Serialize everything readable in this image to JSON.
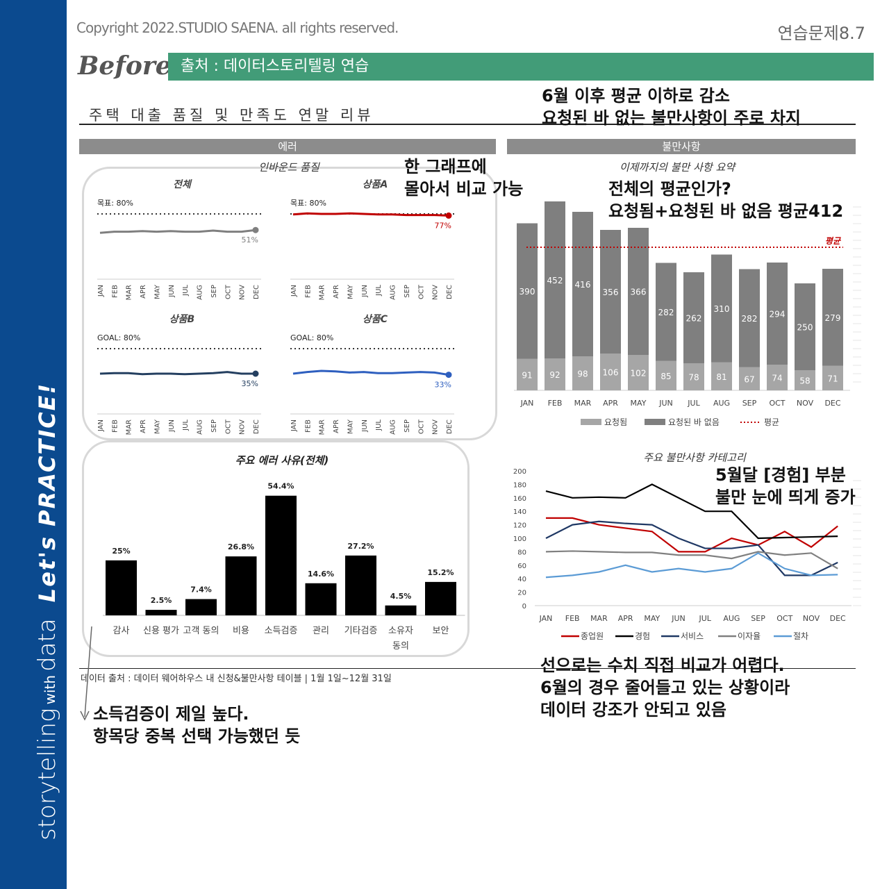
{
  "sidebar": {
    "text_a": "storytelling",
    "text_b": "with",
    "text_c": "data",
    "text_d": "Let's PRACTICE!"
  },
  "header": {
    "copyright": "Copyright 2022.STUDIO SAENA. all rights reserved.",
    "exercise": "연습문제8.7",
    "before": "Before",
    "source": "출처 : 데이터스토리텔링 연습"
  },
  "main_title": "주택 대출 품질 및 만족도 연말 리뷰",
  "sections": {
    "error": "에러",
    "complaints": "불만사항"
  },
  "footer": {
    "data_source": "데이터 출처 : 데이터 웨어하우스 내 신청&불만사항 테이블 | 1월 1일~12월 31일"
  },
  "annotations": {
    "a1_l1": "6월 이후 평균 이하로 감소",
    "a1_l2": "요청된 바 없는 불만사항이 주로 차지",
    "a2_l1": "한 그래프에",
    "a2_l2": "몰아서 비교 가능",
    "a3_l1": "전체의 평균인가?",
    "a3_l2": "요청됨+요청된 바 없음 평균412",
    "a4_l1": "5월달 [경험] 부분",
    "a4_l2": "불만 눈에 띄게 증가",
    "a5_l1": "선으로는 수치 직접 비교가 어렵다.",
    "a5_l2": "6월의 경우 줄어들고 있는 상황이라",
    "a5_l3": "데이터 강조가 안되고 있음",
    "a6_l1": "소득검증이 제일 높다.",
    "a6_l2": "항목당 중복 선택 가능했던 듯"
  },
  "colors": {
    "sidebar": "#0b4a8f",
    "source_bar": "#429c78",
    "requested": "#a6a6a6",
    "not_requested": "#7f7f7f",
    "avg": "#c00000",
    "prodA": "#c00000",
    "prodB": "#243f60",
    "prodC": "#2e5fbf",
    "total": "#7f7f7f"
  },
  "chart_data": [
    {
      "type": "line",
      "title": "인바운드 품질",
      "months": [
        "JAN",
        "FEB",
        "MAR",
        "APR",
        "MAY",
        "JUN",
        "JUL",
        "AUG",
        "SEP",
        "OCT",
        "NOV",
        "DEC"
      ],
      "panels": [
        {
          "name": "전체",
          "goal_label": "목표: 80%",
          "goal": 80,
          "values": [
            46,
            48,
            48,
            49,
            48,
            49,
            48,
            48,
            50,
            48,
            48,
            51
          ],
          "end_label": "51%",
          "color": "#7f7f7f"
        },
        {
          "name": "상품A",
          "goal_label": "목표: 80%",
          "goal": 80,
          "values": [
            79,
            81,
            80,
            80,
            81,
            80,
            79,
            79,
            78,
            78,
            78,
            77
          ],
          "end_label": "77%",
          "color": "#c00000"
        },
        {
          "name": "상품B",
          "goal_label": "GOAL: 80%",
          "goal": 80,
          "values": [
            35,
            36,
            36,
            34,
            35,
            35,
            34,
            35,
            36,
            38,
            35,
            35
          ],
          "end_label": "35%",
          "color": "#243f60"
        },
        {
          "name": "상품C",
          "goal_label": "GOAL: 80%",
          "goal": 80,
          "values": [
            35,
            38,
            40,
            39,
            37,
            38,
            36,
            36,
            37,
            38,
            37,
            33
          ],
          "end_label": "33%",
          "color": "#2e5fbf"
        }
      ],
      "ylim": [
        0,
        100
      ]
    },
    {
      "type": "bar",
      "title": "주요 에러 사유(전체)",
      "categories": [
        "감사",
        "신용 평가",
        "고객 동의",
        "비용",
        "소득검증",
        "관리",
        "기타검증",
        "소유자 동의",
        "보안"
      ],
      "cat_lines": [
        [
          "감사"
        ],
        [
          "신용 평가"
        ],
        [
          "고객 동의"
        ],
        [
          "비용"
        ],
        [
          "소득검증"
        ],
        [
          "관리"
        ],
        [
          "기타검증"
        ],
        [
          "소유자",
          "동의"
        ],
        [
          "보안"
        ]
      ],
      "values": [
        25,
        2.5,
        7.4,
        26.8,
        54.4,
        14.6,
        27.2,
        4.5,
        15.2
      ],
      "labels": [
        "25%",
        "2.5%",
        "7.4%",
        "26.8%",
        "54.4%",
        "14.6%",
        "27.2%",
        "4.5%",
        "15.2%"
      ],
      "ylim": [
        0,
        60
      ]
    },
    {
      "type": "bar",
      "stacked": true,
      "title": "이제까지의 불만 사항 요약",
      "categories": [
        "JAN",
        "FEB",
        "MAR",
        "APR",
        "MAY",
        "JUN",
        "JUL",
        "AUG",
        "SEP",
        "OCT",
        "NOV",
        "DEC"
      ],
      "series": [
        {
          "name": "요청됨",
          "values": [
            91,
            92,
            98,
            106,
            102,
            85,
            78,
            81,
            67,
            74,
            58,
            71
          ]
        },
        {
          "name": "요청된 바 없음",
          "values": [
            390,
            452,
            416,
            356,
            366,
            282,
            262,
            310,
            282,
            294,
            250,
            279
          ]
        }
      ],
      "average": {
        "name": "평균",
        "value": 412,
        "label": "평균"
      },
      "ylim": [
        0,
        560
      ]
    },
    {
      "type": "line",
      "title": "주요 불만사항 카테고리",
      "categories": [
        "JAN",
        "FEB",
        "MAR",
        "APR",
        "MAY",
        "JUN",
        "JUL",
        "AUG",
        "SEP",
        "OCT",
        "NOV",
        "DEC"
      ],
      "series": [
        {
          "name": "종업원",
          "color": "#c00000",
          "values": [
            130,
            130,
            120,
            115,
            110,
            80,
            80,
            100,
            90,
            110,
            87,
            118
          ]
        },
        {
          "name": "경험",
          "color": "#000000",
          "values": [
            170,
            160,
            161,
            160,
            180,
            160,
            140,
            140,
            100,
            101,
            102,
            103
          ]
        },
        {
          "name": "서비스",
          "color": "#1f3864",
          "values": [
            100,
            120,
            125,
            122,
            120,
            100,
            85,
            85,
            90,
            45,
            45,
            64
          ]
        },
        {
          "name": "이자율",
          "color": "#808080",
          "values": [
            80,
            81,
            80,
            79,
            79,
            75,
            75,
            70,
            80,
            75,
            78,
            55
          ]
        },
        {
          "name": "절차",
          "color": "#5b9bd5",
          "values": [
            42,
            45,
            50,
            60,
            50,
            55,
            50,
            55,
            78,
            55,
            45,
            46
          ]
        }
      ],
      "yticks": [
        0,
        20,
        40,
        60,
        80,
        100,
        120,
        140,
        160,
        180,
        200
      ],
      "ylim": [
        0,
        200
      ]
    }
  ]
}
